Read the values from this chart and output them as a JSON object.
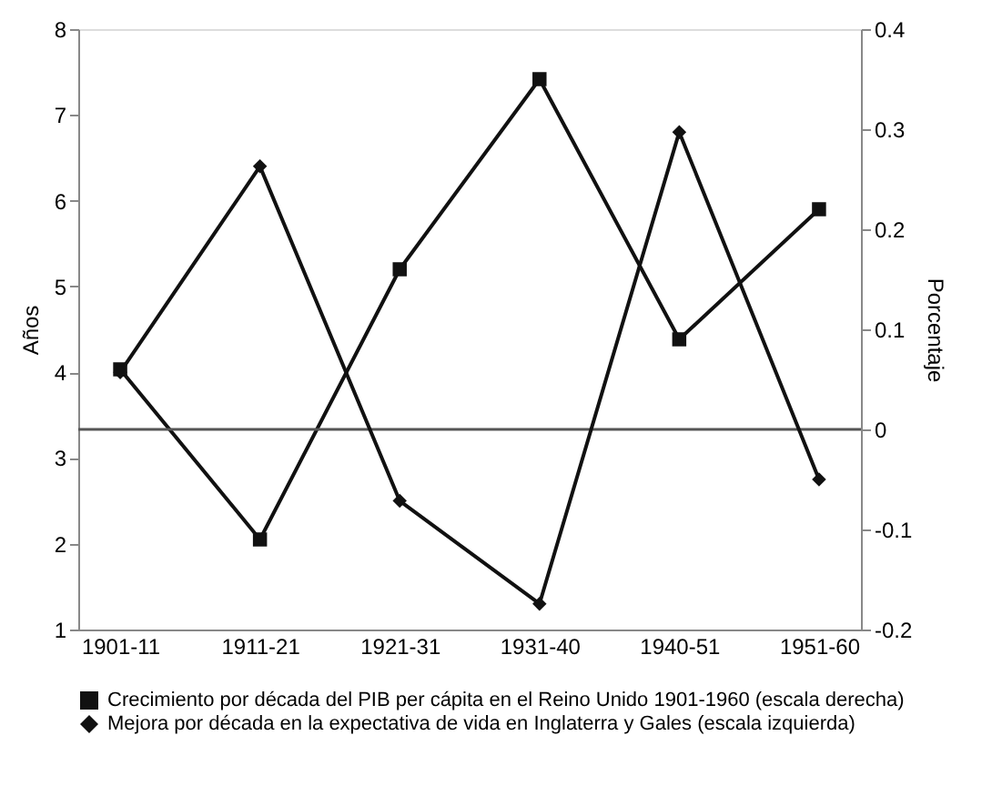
{
  "chart_data": {
    "type": "line",
    "ylabel": "Años",
    "y2label": "Porcentaje",
    "categories": [
      "1901-11",
      "1911-21",
      "1921-31",
      "1931-40",
      "1940-51",
      "1951-60"
    ],
    "series": [
      {
        "name": "Crecimiento por década del PIB per cápita en el Reino Unido 1901-1960 (escala derecha)",
        "color": "#111111",
        "marker": "square",
        "axis": "y2",
        "values": [
          0.06,
          -0.11,
          0.16,
          0.35,
          0.09,
          0.22
        ]
      },
      {
        "name": "Mejora por década en la expectativa de vida en Inglaterra y Gales  (escala izquierda)",
        "color": "#111111",
        "marker": "diamond",
        "values": [
          4.0,
          6.4,
          2.5,
          1.3,
          6.8,
          2.75
        ]
      }
    ],
    "ylim": [
      1,
      8
    ],
    "yticks": [
      1,
      2,
      3,
      4,
      5,
      6,
      7,
      8
    ],
    "y2lim": [
      -0.2,
      0.4
    ],
    "y2ticks": [
      -0.2,
      -0.1,
      0,
      0.1,
      0.2,
      0.3,
      0.4
    ],
    "ref_lines": [
      {
        "axis": "y2",
        "value": 0,
        "color": "#555555"
      }
    ],
    "grid": false,
    "legend": "bottom",
    "line_style": "solid"
  }
}
